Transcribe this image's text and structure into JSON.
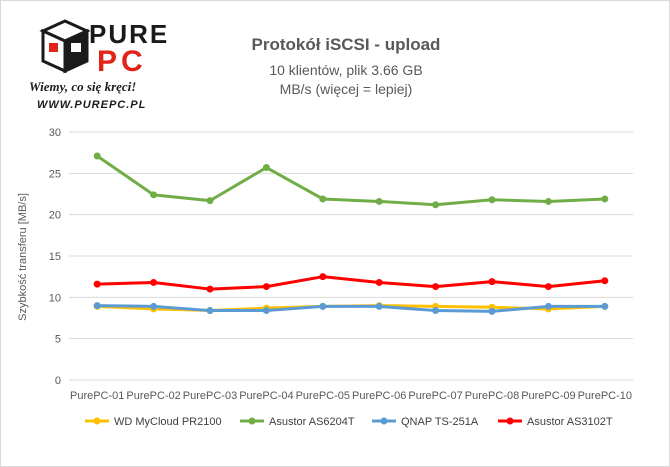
{
  "logo": {
    "brand_top": "PURE",
    "brand_bottom": "PC",
    "slogan": "Wiemy, co się kręci!",
    "url": "WWW.PUREPC.PL"
  },
  "colors": {
    "axis_text": "#595959",
    "grid": "#d9d9d9",
    "logo_red": "#e2231a",
    "logo_dark": "#1a1a1a"
  },
  "chart_data": {
    "type": "line",
    "title": "Protokół iSCSI - upload",
    "subtitle_1": "10 klientów, plik 3.66 GB",
    "subtitle_2": "MB/s (więcej = lepiej)",
    "xlabel": "",
    "ylabel": "Szybkość transferu [MB/s]",
    "ylim": [
      0,
      30
    ],
    "yticks": [
      0,
      5,
      10,
      15,
      20,
      25,
      30
    ],
    "grid": true,
    "legend_position": "bottom",
    "categories": [
      "PurePC-01",
      "PurePC-02",
      "PurePC-03",
      "PurePC-04",
      "PurePC-05",
      "PurePC-06",
      "PurePC-07",
      "PurePC-08",
      "PurePC-09",
      "PurePC-10"
    ],
    "series": [
      {
        "name": "WD MyCloud PR2100",
        "color": "#ffc000",
        "values": [
          8.9,
          8.6,
          8.4,
          8.7,
          8.9,
          9.0,
          8.9,
          8.8,
          8.6,
          8.9
        ]
      },
      {
        "name": "Asustor AS6204T",
        "color": "#70ad47",
        "values": [
          27.1,
          22.4,
          21.7,
          25.7,
          21.9,
          21.6,
          21.2,
          21.8,
          21.6,
          21.9
        ]
      },
      {
        "name": "QNAP TS-251A",
        "color": "#5b9bd5",
        "values": [
          9.0,
          8.9,
          8.4,
          8.4,
          8.9,
          8.9,
          8.4,
          8.3,
          8.9,
          8.9
        ]
      },
      {
        "name": "Asustor AS3102T",
        "color": "#ff0000",
        "values": [
          11.6,
          11.8,
          11.0,
          11.3,
          12.5,
          11.8,
          11.3,
          11.9,
          11.3,
          12.0
        ]
      }
    ]
  }
}
